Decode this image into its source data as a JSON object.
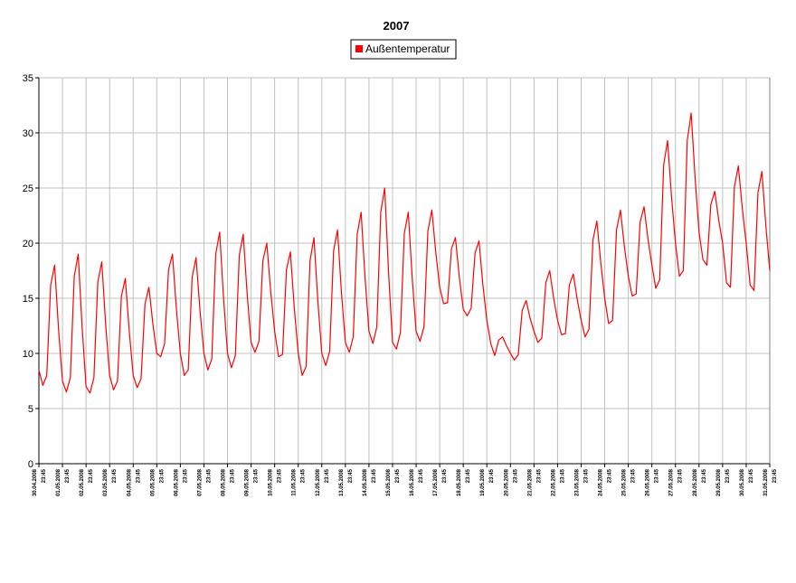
{
  "chart_data": {
    "type": "line",
    "title": "2007",
    "categories": [
      "30.04.2008 23:45",
      null,
      null,
      null,
      null,
      null,
      "01.05.2008 23:45",
      null,
      null,
      null,
      null,
      null,
      "02.05.2008 23:45",
      null,
      null,
      null,
      null,
      null,
      "03.05.2008 23:45",
      null,
      null,
      null,
      null,
      null,
      "04.05.2008 23:45",
      null,
      null,
      null,
      null,
      null,
      "05.05.2008 23:45",
      null,
      null,
      null,
      null,
      null,
      "06.05.2008 23:45",
      null,
      null,
      null,
      null,
      null,
      "07.05.2008 23:45",
      null,
      null,
      null,
      null,
      null,
      "08.05.2008 23:45",
      null,
      null,
      null,
      null,
      null,
      "09.05.2008 23:45",
      null,
      null,
      null,
      null,
      null,
      "10.05.2008 23:45",
      null,
      null,
      null,
      null,
      null,
      "11.05.2008 23:45",
      null,
      null,
      null,
      null,
      null,
      "12.05.2008 23:45",
      null,
      null,
      null,
      null,
      null,
      "13.05.2008 23:45",
      null,
      null,
      null,
      null,
      null,
      "14.05.2008 23:45",
      null,
      null,
      null,
      null,
      null,
      "15.05.2008 23:45",
      null,
      null,
      null,
      null,
      null,
      "16.05.2008 23:45",
      null,
      null,
      null,
      null,
      null,
      "17.05.2008 23:45",
      null,
      null,
      null,
      null,
      null,
      "18.05.2008 23:45",
      null,
      null,
      null,
      null,
      null,
      "19.05.2008 23:45",
      null,
      null,
      null,
      null,
      null,
      "20.05.2008 23:45",
      null,
      null,
      null,
      null,
      null,
      "21.05.2008 23:45",
      null,
      null,
      null,
      null,
      null,
      "22.05.2008 23:45",
      null,
      null,
      null,
      null,
      null,
      "23.05.2008 23:45",
      null,
      null,
      null,
      null,
      null,
      "24.05.2008 23:45",
      null,
      null,
      null,
      null,
      null,
      "25.05.2008 23:45",
      null,
      null,
      null,
      null,
      null,
      "26.05.2008 23:45",
      null,
      null,
      null,
      null,
      null,
      "27.05.2008 23:45",
      null,
      null,
      null,
      null,
      null,
      "28.05.2008 23:45",
      null,
      null,
      null,
      null,
      null,
      "29.05.2008 23:45",
      null,
      null,
      null,
      null,
      null,
      "30.05.2008 23:45",
      null,
      null,
      null,
      null,
      null,
      "31.05.2008 23:45"
    ],
    "series": [
      {
        "name": "Außentemperatur",
        "color": "#ff0000",
        "values": [
          8.5,
          7.1,
          8.0,
          16.2,
          18,
          12.2,
          7.5,
          6.5,
          7.8,
          17.0,
          19,
          12.4,
          7,
          6.4,
          7.8,
          16.5,
          18.3,
          12.6,
          8,
          6.7,
          7.5,
          15.2,
          16.8,
          12.0,
          8,
          6.9,
          7.7,
          14.5,
          16,
          12.7,
          10,
          9.7,
          10.9,
          17.6,
          19,
          14.0,
          10,
          8.0,
          8.5,
          16.9,
          18.7,
          13.9,
          10,
          8.5,
          9.5,
          19.0,
          21,
          15.0,
          10,
          8.7,
          9.8,
          18.9,
          20.8,
          15.4,
          11,
          10.1,
          11.1,
          18.4,
          20,
          15.6,
          12,
          9.7,
          9.9,
          17.6,
          19.2,
          14.1,
          10,
          8.0,
          8.8,
          18.4,
          20.5,
          14.7,
          10,
          8.9,
          10.2,
          19.3,
          21.2,
          15.5,
          11,
          10.1,
          11.5,
          20.8,
          22.8,
          16.9,
          12,
          10.9,
          12.4,
          22.8,
          25,
          17.3,
          11,
          10.4,
          11.9,
          20.9,
          22.8,
          16.9,
          12,
          11.1,
          12.4,
          21.1,
          23,
          19.2,
          16,
          14.5,
          14.6,
          19.5,
          20.5,
          16.9,
          14,
          13.4,
          14.1,
          19.1,
          20.2,
          16.2,
          13,
          10.9,
          9.8,
          11.2,
          11.5,
          10.7,
          10,
          9.4,
          9.9,
          13.9,
          14.8,
          13.2,
          12,
          11.0,
          11.4,
          16.4,
          17.5,
          15.0,
          13,
          11.7,
          11.8,
          16.2,
          17.2,
          14.9,
          13,
          11.5,
          12.2,
          20.3,
          22,
          18.2,
          15,
          12.7,
          13.0,
          21.2,
          23,
          19.7,
          17,
          15.2,
          15.4,
          21.9,
          23.3,
          20.4,
          18,
          15.9,
          16.7,
          27.1,
          29.3,
          24.2,
          20,
          17.0,
          17.5,
          29.3,
          31.8,
          25.9,
          21,
          18.5,
          18.0,
          23.5,
          24.7,
          22.1,
          20,
          16.4,
          16.0,
          25.1,
          27,
          23.2,
          20,
          16.2,
          15.7,
          24.6,
          26.5,
          21.6,
          17.5
        ]
      }
    ],
    "ylim": [
      0,
      35
    ],
    "yticks": [
      0,
      5,
      10,
      15,
      20,
      25,
      30,
      35
    ],
    "grid": true
  }
}
